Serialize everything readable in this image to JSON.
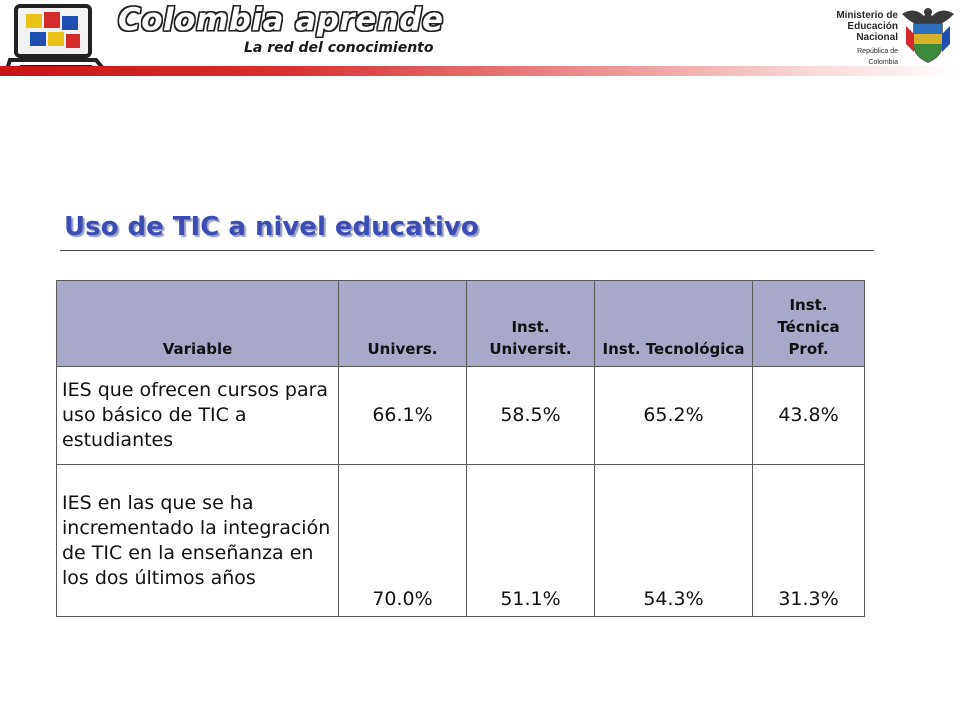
{
  "header": {
    "brand_title": "Colombia aprende",
    "brand_subtitle": "La red del conocimiento",
    "ministry_lines": [
      "Ministerio de",
      "Educación",
      "Nacional"
    ],
    "ministry_country": "República de Colombia",
    "logo_icon": "laptop-puzzle-logo",
    "shield_icon": "colombia-coat-of-arms",
    "stripe_color": "#c81414"
  },
  "title": "Uso de TIC a nivel educativo",
  "title_color": "#3b4db4",
  "table": {
    "headers": {
      "variable": "Variable",
      "univ": "Univers.",
      "inst_univ": "Inst. Universit.",
      "inst_tec": "Inst. Tecnológica",
      "inst_tecprof": "Inst. Técnica Prof."
    },
    "header_bg": "#a8a8ca",
    "rows": [
      {
        "variable": "IES que ofrecen cursos para uso básico de TIC a estudiantes",
        "univ": "66.1%",
        "inst_univ": "58.5%",
        "inst_tec": "65.2%",
        "inst_tecprof": "43.8%"
      },
      {
        "variable": "IES en las que se ha incrementado la integración de TIC en la enseñanza en los dos últimos años",
        "univ": "70.0%",
        "inst_univ": "51.1%",
        "inst_tec": "54.3%",
        "inst_tecprof": "31.3%"
      }
    ]
  }
}
